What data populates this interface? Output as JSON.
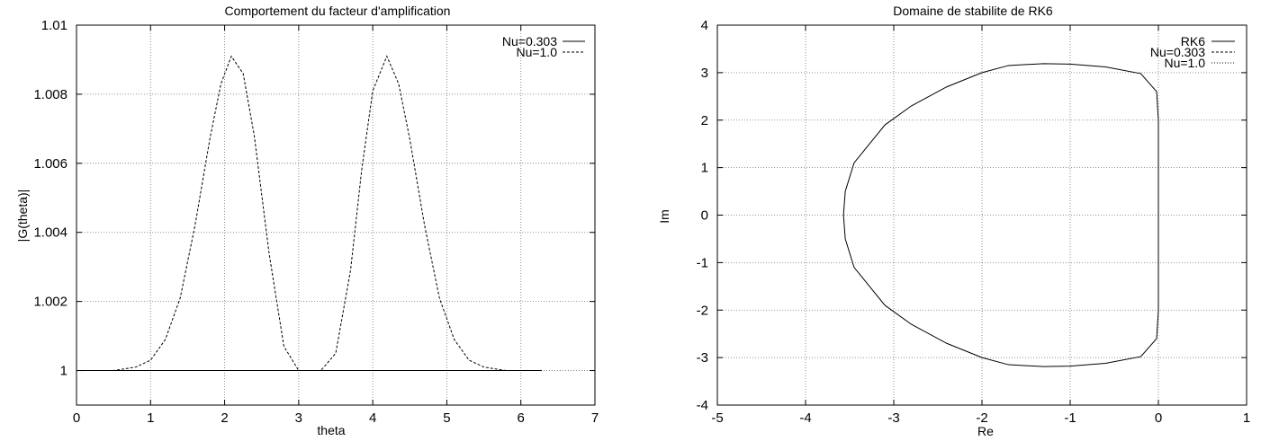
{
  "chart_data": [
    {
      "type": "line",
      "title": "Comportement du facteur d'amplification",
      "xlabel": "theta",
      "ylabel": "|G(theta)|",
      "xlim": [
        0,
        7
      ],
      "ylim": [
        0.999,
        1.01
      ],
      "xticks": [
        "0",
        "1",
        "2",
        "3",
        "4",
        "5",
        "6",
        "7"
      ],
      "yticks": [
        "1",
        "1.002",
        "1.004",
        "1.006",
        "1.008",
        "1.01"
      ],
      "grid": true,
      "legend_position": "top-right",
      "series": [
        {
          "name": "Nu=0.303",
          "style": "solid",
          "x": [
            0,
            0.5,
            1,
            1.5,
            2,
            2.5,
            3,
            3.5,
            4,
            4.5,
            5,
            5.5,
            6,
            6.283
          ],
          "y": [
            1,
            1,
            1,
            1,
            1,
            1,
            1,
            1,
            1,
            1,
            1,
            1,
            1,
            1
          ]
        },
        {
          "name": "Nu=1.0",
          "style": "dashed",
          "x": [
            0,
            0.5,
            0.8,
            1,
            1.2,
            1.4,
            1.6,
            1.8,
            1.95,
            2.09,
            2.25,
            2.4,
            2.6,
            2.8,
            3.0,
            3.14,
            3.3,
            3.5,
            3.7,
            3.85,
            4.0,
            4.19,
            4.35,
            4.5,
            4.7,
            4.9,
            5.1,
            5.3,
            5.5,
            5.8,
            6.283
          ],
          "y": [
            1,
            1,
            1.0001,
            1.0003,
            1.0009,
            1.0021,
            1.0042,
            1.0067,
            1.0083,
            1.0091,
            1.0086,
            1.0068,
            1.0034,
            1.0007,
            1.0,
            1.0,
            1.0,
            1.0005,
            1.0029,
            1.0058,
            1.0081,
            1.0091,
            1.0083,
            1.0067,
            1.0042,
            1.0021,
            1.0009,
            1.0003,
            1.0001,
            1,
            1
          ]
        }
      ]
    },
    {
      "type": "line",
      "title": "Domaine de stabilite de RK6",
      "xlabel": "Re",
      "ylabel": "Im",
      "xlim": [
        -5,
        1
      ],
      "ylim": [
        -4,
        4
      ],
      "xticks": [
        "-5",
        "-4",
        "-3",
        "-2",
        "-1",
        "0",
        "1"
      ],
      "yticks": [
        "-4",
        "-3",
        "-2",
        "-1",
        "0",
        "1",
        "2",
        "3",
        "4"
      ],
      "grid": true,
      "legend_position": "top-right",
      "series": [
        {
          "name": "RK6",
          "style": "solid",
          "x": [
            0,
            0,
            -0.02,
            -0.2,
            -0.6,
            -1.0,
            -1.3,
            -1.7,
            -2.0,
            -2.4,
            -2.8,
            -3.1,
            -3.45,
            -3.55,
            -3.57,
            -3.55,
            -3.45,
            -3.1,
            -2.8,
            -2.4,
            -2.0,
            -1.7,
            -1.3,
            -1.0,
            -0.6,
            -0.2,
            -0.02,
            0,
            0
          ],
          "y": [
            0,
            2.0,
            2.6,
            2.98,
            3.12,
            3.18,
            3.19,
            3.15,
            3.0,
            2.7,
            2.3,
            1.9,
            1.1,
            0.5,
            0,
            -0.5,
            -1.1,
            -1.9,
            -2.3,
            -2.7,
            -3.0,
            -3.15,
            -3.19,
            -3.18,
            -3.12,
            -2.98,
            -2.6,
            -2.0,
            0
          ]
        },
        {
          "name": "Nu=0.303",
          "style": "dashed",
          "x": [],
          "y": []
        },
        {
          "name": "Nu=1.0",
          "style": "dotted",
          "x": [],
          "y": []
        }
      ]
    }
  ]
}
